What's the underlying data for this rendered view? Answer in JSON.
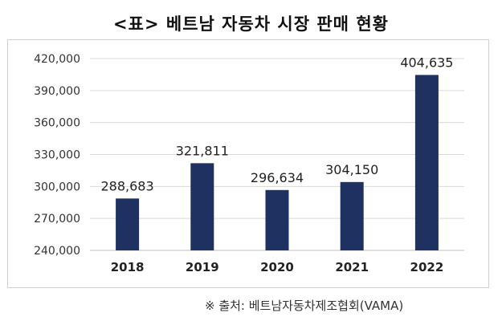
{
  "title": "<표> 베트남 자동차 시장 판매 현황",
  "source": "※ 출처: 베트남자동차제조협회(VAMA)",
  "colors": {
    "bar": "#1f3160",
    "gridline": "#d9d9d9",
    "axis": "#bfbfbf"
  },
  "chart_data": {
    "type": "bar",
    "categories": [
      "2018",
      "2019",
      "2020",
      "2021",
      "2022"
    ],
    "values": [
      288683,
      321811,
      296634,
      304150,
      404635
    ],
    "data_labels": [
      "288,683",
      "321,811",
      "296,634",
      "304,150",
      "404,635"
    ],
    "ylim": [
      240000,
      420000
    ],
    "yticks": [
      240000,
      270000,
      300000,
      330000,
      360000,
      390000,
      420000
    ],
    "ytick_labels": [
      "240,000",
      "270,000",
      "300,000",
      "330,000",
      "360,000",
      "390,000",
      "420,000"
    ],
    "grid": true,
    "title": "",
    "xlabel": "",
    "ylabel": ""
  }
}
